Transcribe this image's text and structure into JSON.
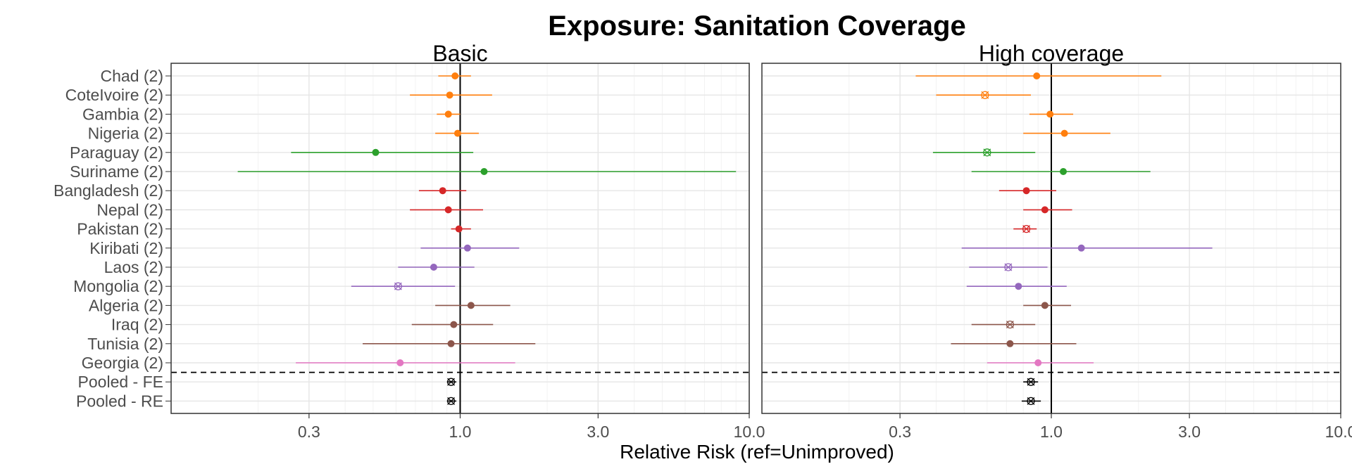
{
  "chart_data": {
    "type": "forest",
    "title": "Exposure: Sanitation Coverage",
    "xlabel": "Relative Risk (ref=Unimproved)",
    "x_scale": "log",
    "xlim": [
      0.1,
      10.0
    ],
    "xticks": [
      0.3,
      1.0,
      3.0,
      10.0
    ],
    "xtick_labels": [
      "0.3",
      "1.0",
      "3.0",
      "10.0"
    ],
    "reference_line": 1.0,
    "grid": true,
    "legend": "none",
    "categories": [
      "Chad (2)",
      "CoteIvoire (2)",
      "Gambia (2)",
      "Nigeria (2)",
      "Paraguay (2)",
      "Suriname (2)",
      "Bangladesh (2)",
      "Nepal (2)",
      "Pakistan (2)",
      "Kiribati (2)",
      "Laos (2)",
      "Mongolia (2)",
      "Algeria (2)",
      "Iraq (2)",
      "Tunisia (2)",
      "Georgia (2)",
      "Pooled - FE",
      "Pooled - RE"
    ],
    "category_colors": [
      "#ff7f0e",
      "#ff7f0e",
      "#ff7f0e",
      "#ff7f0e",
      "#2ca02c",
      "#2ca02c",
      "#d62728",
      "#d62728",
      "#d62728",
      "#9467bd",
      "#9467bd",
      "#9467bd",
      "#8c564b",
      "#8c564b",
      "#8c564b",
      "#e377c2",
      "#000000",
      "#000000"
    ],
    "separator_after": "Georgia (2)",
    "panels": [
      {
        "name": "Basic",
        "estimates": [
          0.96,
          0.92,
          0.91,
          0.98,
          0.51,
          1.21,
          0.87,
          0.91,
          0.99,
          1.06,
          0.81,
          0.61,
          1.09,
          0.95,
          0.93,
          0.62,
          0.93,
          0.93
        ],
        "lower": [
          0.84,
          0.67,
          0.83,
          0.82,
          0.26,
          0.17,
          0.72,
          0.67,
          0.93,
          0.73,
          0.61,
          0.42,
          0.82,
          0.68,
          0.46,
          0.27,
          0.9,
          0.9
        ],
        "upper": [
          1.09,
          1.29,
          1.0,
          1.16,
          1.11,
          9.0,
          1.05,
          1.2,
          1.09,
          1.6,
          1.12,
          0.96,
          1.49,
          1.3,
          1.82,
          1.55,
          0.97,
          0.97
        ],
        "significant": [
          true,
          true,
          true,
          true,
          true,
          true,
          true,
          true,
          true,
          true,
          true,
          false,
          true,
          true,
          true,
          true,
          false,
          false
        ]
      },
      {
        "name": "High coverage",
        "estimates": [
          0.89,
          0.59,
          0.99,
          1.11,
          0.6,
          1.1,
          0.82,
          0.95,
          0.82,
          1.27,
          0.71,
          0.77,
          0.95,
          0.72,
          0.72,
          0.9,
          0.85,
          0.85
        ],
        "lower": [
          0.34,
          0.4,
          0.84,
          0.8,
          0.39,
          0.53,
          0.66,
          0.8,
          0.74,
          0.49,
          0.52,
          0.51,
          0.8,
          0.53,
          0.45,
          0.6,
          0.8,
          0.79
        ],
        "upper": [
          2.4,
          0.85,
          1.19,
          1.6,
          0.88,
          2.2,
          1.04,
          1.18,
          0.89,
          3.6,
          0.97,
          1.13,
          1.17,
          0.88,
          1.22,
          1.4,
          0.9,
          0.92
        ],
        "significant": [
          true,
          false,
          true,
          true,
          false,
          true,
          true,
          true,
          false,
          true,
          false,
          true,
          true,
          false,
          true,
          true,
          false,
          false
        ]
      }
    ]
  }
}
